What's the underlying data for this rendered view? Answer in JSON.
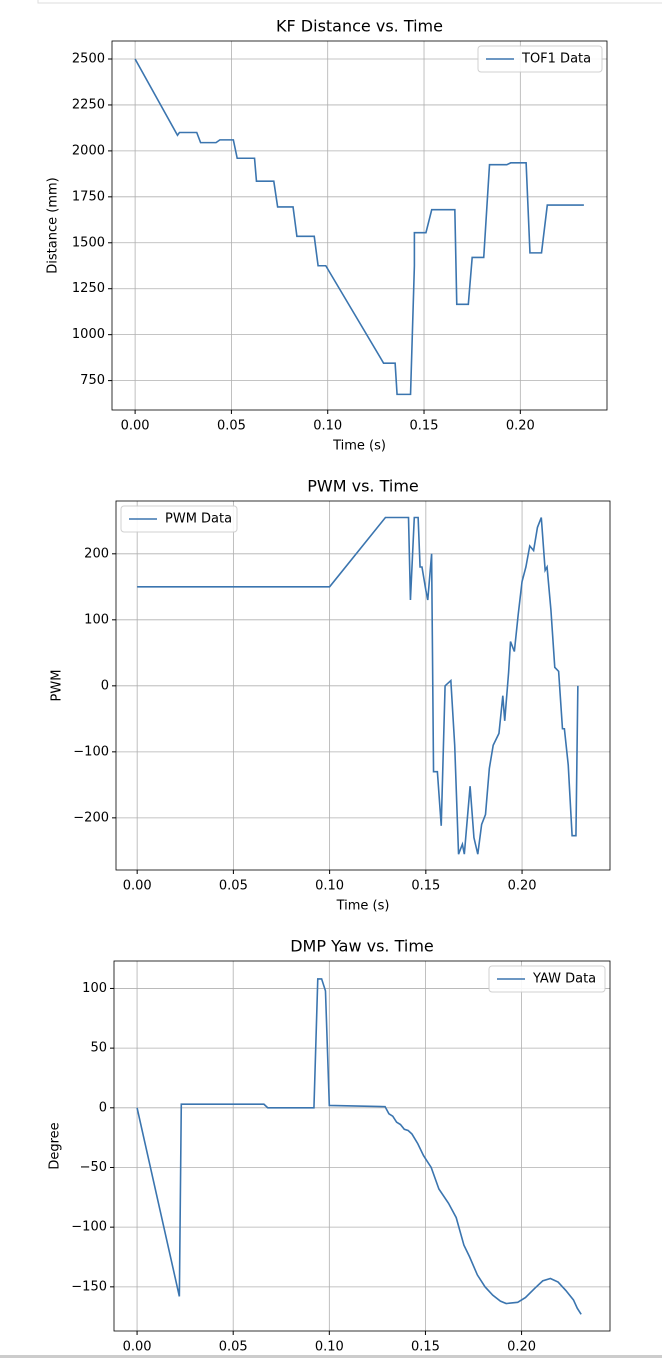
{
  "chart_data": [
    {
      "type": "line",
      "title": "KF Distance vs. Time",
      "xlabel": "Time (s)",
      "ylabel": "Distance (mm)",
      "x": [
        0,
        0.022,
        0.023,
        0.032,
        0.034,
        0.042,
        0.044,
        0.051,
        0.053,
        0.062,
        0.063,
        0.072,
        0.074,
        0.082,
        0.084,
        0.093,
        0.095,
        0.099,
        0.129,
        0.135,
        0.136,
        0.143,
        0.145,
        0.145,
        0.151,
        0.154,
        0.166,
        0.167,
        0.173,
        0.175,
        0.181,
        0.184,
        0.193,
        0.195,
        0.203,
        0.205,
        0.211,
        0.214,
        0.233
      ],
      "series": [
        {
          "name": "TOF1 Data",
          "color": "#3b75af",
          "values": [
            2500,
            2085,
            2100,
            2100,
            2045,
            2045,
            2060,
            2060,
            1960,
            1960,
            1835,
            1835,
            1695,
            1695,
            1535,
            1535,
            1375,
            1375,
            845,
            845,
            675,
            675,
            1375,
            1555,
            1555,
            1680,
            1680,
            1165,
            1165,
            1420,
            1420,
            1925,
            1925,
            1935,
            1935,
            1445,
            1445,
            1705,
            1705
          ]
        }
      ],
      "xlim": [
        -0.012,
        0.245
      ],
      "ylim": [
        590,
        2598
      ],
      "xticks": [
        {
          "value": 0,
          "label": "0.00"
        },
        {
          "value": 0.05,
          "label": "0.05"
        },
        {
          "value": 0.1,
          "label": "0.10"
        },
        {
          "value": 0.15,
          "label": "0.15"
        },
        {
          "value": 0.2,
          "label": "0.20"
        }
      ],
      "yticks": [
        750,
        1000,
        1250,
        1500,
        1750,
        2000,
        2250,
        2500
      ],
      "grid": true,
      "legend": "upper right"
    },
    {
      "type": "line",
      "title": "PWM vs. Time",
      "xlabel": "Time (s)",
      "ylabel": "PWM",
      "x": [
        0,
        0.1,
        0.129,
        0.141,
        0.142,
        0.144,
        0.146,
        0.147,
        0.148,
        0.15,
        0.151,
        0.153,
        0.154,
        0.156,
        0.158,
        0.16,
        0.163,
        0.165,
        0.167,
        0.169,
        0.17,
        0.173,
        0.175,
        0.177,
        0.179,
        0.181,
        0.183,
        0.185,
        0.188,
        0.19,
        0.191,
        0.193,
        0.194,
        0.196,
        0.198,
        0.2,
        0.202,
        0.204,
        0.206,
        0.208,
        0.21,
        0.212,
        0.213,
        0.215,
        0.217,
        0.219,
        0.221,
        0.222,
        0.224,
        0.226,
        0.228,
        0.229
      ],
      "series": [
        {
          "name": "PWM Data",
          "color": "#3b75af",
          "values": [
            150,
            150,
            255,
            255,
            130,
            255,
            255,
            180,
            180,
            145,
            130,
            200,
            -130,
            -130,
            -212,
            0,
            8,
            -90,
            -255,
            -240,
            -255,
            -152,
            -230,
            -255,
            -210,
            -195,
            -125,
            -90,
            -72,
            -15,
            -53,
            20,
            67,
            52,
            108,
            158,
            180,
            212,
            205,
            240,
            255,
            175,
            180,
            115,
            28,
            22,
            -65,
            -65,
            -120,
            -227,
            -227,
            0
          ]
        }
      ],
      "xlim": [
        -0.011,
        0.2457
      ],
      "ylim": [
        -279,
        280
      ],
      "xticks": [
        {
          "value": 0,
          "label": "0.00"
        },
        {
          "value": 0.05,
          "label": "0.05"
        },
        {
          "value": 0.1,
          "label": "0.10"
        },
        {
          "value": 0.15,
          "label": "0.15"
        },
        {
          "value": 0.2,
          "label": "0.20"
        }
      ],
      "yticks": [
        {
          "value": -200,
          "label": "−200"
        },
        {
          "value": -100,
          "label": "−100"
        },
        0,
        100,
        200
      ],
      "grid": true,
      "legend": "upper left"
    },
    {
      "type": "line",
      "title": "DMP Yaw vs. Time",
      "ylabel": "Degree",
      "x": [
        0,
        0.022,
        0.023,
        0.066,
        0.068,
        0.092,
        0.094,
        0.096,
        0.098,
        0.1,
        0.129,
        0.131,
        0.133,
        0.135,
        0.137,
        0.139,
        0.141,
        0.143,
        0.146,
        0.149,
        0.151,
        0.153,
        0.157,
        0.162,
        0.166,
        0.17,
        0.173,
        0.177,
        0.181,
        0.185,
        0.189,
        0.192,
        0.198,
        0.202,
        0.207,
        0.211,
        0.215,
        0.219,
        0.223,
        0.227,
        0.229,
        0.231
      ],
      "series": [
        {
          "name": "YAW Data",
          "color": "#3b75af",
          "values": [
            0,
            -158,
            3,
            3,
            0,
            0,
            108,
            108,
            98,
            2,
            1,
            -5,
            -7,
            -12,
            -14,
            -18,
            -19,
            -22,
            -30,
            -40,
            -45,
            -50,
            -68,
            -80,
            -92,
            -115,
            -125,
            -140,
            -150,
            -157,
            -162,
            -164,
            -163,
            -159,
            -151,
            -145,
            -143,
            -146,
            -153,
            -161,
            -168,
            -173
          ]
        }
      ],
      "xlim": [
        -0.012,
        0.246
      ],
      "ylim": [
        -187,
        123
      ],
      "xticks": [
        {
          "value": 0,
          "label": "0.00"
        },
        {
          "value": 0.05,
          "label": "0.05"
        },
        {
          "value": 0.1,
          "label": "0.10"
        },
        {
          "value": 0.15,
          "label": "0.15"
        },
        {
          "value": 0.2,
          "label": "0.20"
        }
      ],
      "yticks": [
        {
          "value": -150,
          "label": "−150"
        },
        {
          "value": -100,
          "label": "−100"
        },
        {
          "value": -50,
          "label": "−50"
        },
        0,
        50,
        100
      ],
      "grid": true,
      "legend": "upper right"
    }
  ]
}
